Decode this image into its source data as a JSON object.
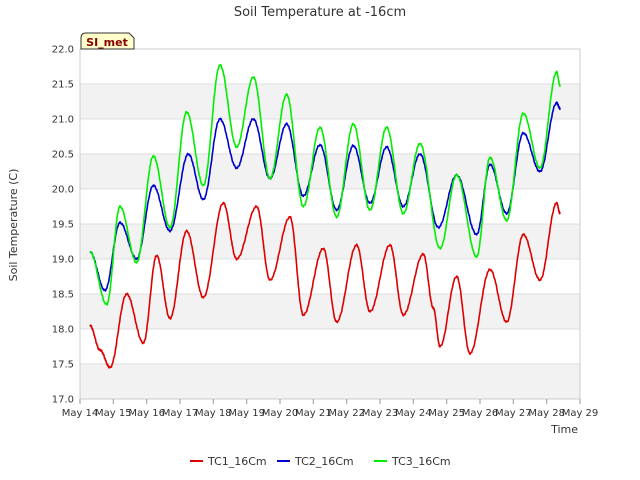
{
  "chart_data": {
    "type": "line",
    "title": "Soil Temperature at -16cm",
    "xlabel": "Time",
    "ylabel": "Soil Temperature (C)",
    "ylim": [
      17.0,
      22.0
    ],
    "xlim": [
      14,
      29
    ],
    "yticks": [
      "17.0",
      "17.5",
      "18.0",
      "18.5",
      "19.0",
      "19.5",
      "20.0",
      "20.5",
      "21.0",
      "21.5",
      "22.0"
    ],
    "xticks": [
      "May 14",
      "May 15",
      "May 16",
      "May 17",
      "May 18",
      "May 19",
      "May 20",
      "May 21",
      "May 22",
      "May 23",
      "May 24",
      "May 25",
      "May 26",
      "May 27",
      "May 28",
      "May 29"
    ],
    "badge": "SI_met",
    "series": [
      {
        "name": "TC1_16Cm",
        "color": "#dd0000",
        "x": [
          14.3,
          14.6,
          14.9,
          15.4,
          15.9,
          16.3,
          16.7,
          17.2,
          17.7,
          18.3,
          18.7,
          19.3,
          19.7,
          20.3,
          20.7,
          21.3,
          21.7,
          22.3,
          22.7,
          23.3,
          23.7,
          24.3,
          24.6,
          24.8,
          25.3,
          25.7,
          26.3,
          26.8,
          27.3,
          27.8,
          28.3,
          28.4
        ],
        "values": [
          18.05,
          17.7,
          17.45,
          18.5,
          17.8,
          19.05,
          18.15,
          19.4,
          18.45,
          19.8,
          19.0,
          19.75,
          18.7,
          19.6,
          18.2,
          19.15,
          18.1,
          19.2,
          18.25,
          19.2,
          18.2,
          19.07,
          18.3,
          17.75,
          18.75,
          17.65,
          18.85,
          18.1,
          19.35,
          18.7,
          19.8,
          19.65
        ]
      },
      {
        "name": "TC2_16Cm",
        "color": "#0000cc",
        "x": [
          14.3,
          14.75,
          15.2,
          15.7,
          16.2,
          16.7,
          17.25,
          17.7,
          18.2,
          18.7,
          19.2,
          19.7,
          20.2,
          20.7,
          21.2,
          21.7,
          22.2,
          22.7,
          23.2,
          23.7,
          24.2,
          24.75,
          25.3,
          25.9,
          26.3,
          26.8,
          27.3,
          27.8,
          28.3,
          28.4
        ],
        "values": [
          19.1,
          18.55,
          19.52,
          19.0,
          20.05,
          19.4,
          20.5,
          19.85,
          21.0,
          20.3,
          21.0,
          20.15,
          20.93,
          19.9,
          20.63,
          19.7,
          20.62,
          19.8,
          20.6,
          19.75,
          20.5,
          19.45,
          20.2,
          19.35,
          20.35,
          19.65,
          20.8,
          20.25,
          21.23,
          21.15
        ]
      },
      {
        "name": "TC3_16Cm",
        "color": "#00ee00",
        "x": [
          14.3,
          14.8,
          15.2,
          15.7,
          16.2,
          16.7,
          17.2,
          17.7,
          18.2,
          18.7,
          19.2,
          19.7,
          20.2,
          20.7,
          21.2,
          21.7,
          22.2,
          22.7,
          23.2,
          23.7,
          24.2,
          24.8,
          25.3,
          25.9,
          26.3,
          26.8,
          27.3,
          27.8,
          28.3,
          28.4
        ],
        "values": [
          19.1,
          18.35,
          19.75,
          18.95,
          20.47,
          19.45,
          21.1,
          20.05,
          21.77,
          20.6,
          21.6,
          20.15,
          21.35,
          19.75,
          20.88,
          19.6,
          20.93,
          19.7,
          20.88,
          19.65,
          20.65,
          19.15,
          20.2,
          19.03,
          20.45,
          19.55,
          21.08,
          20.3,
          21.67,
          21.48
        ]
      }
    ]
  }
}
